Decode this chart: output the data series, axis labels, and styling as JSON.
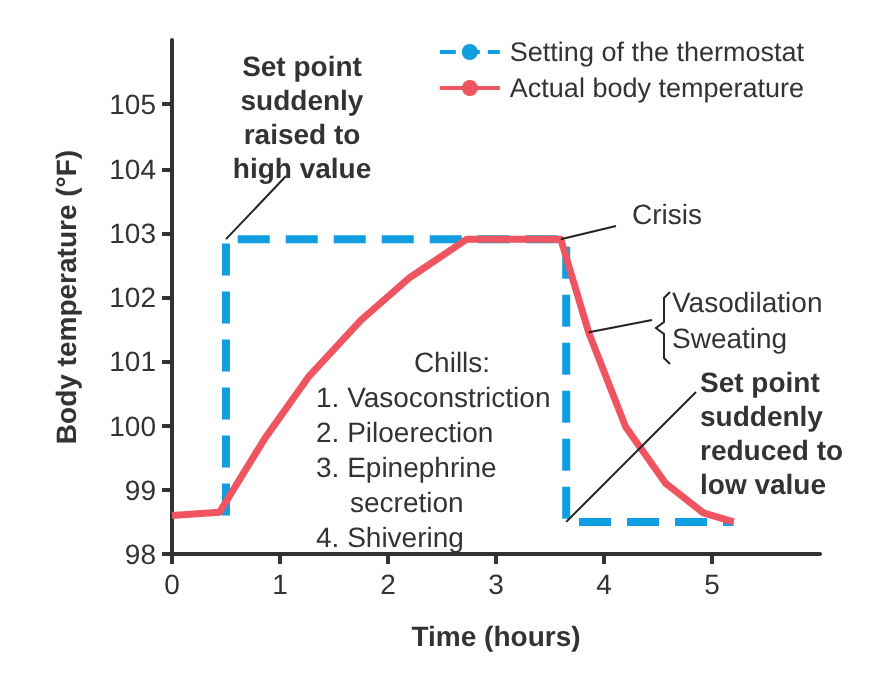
{
  "chart_data": {
    "type": "line",
    "xlabel": "Time (hours)",
    "ylabel": "Body temperature (°F)",
    "xlim": [
      0,
      6
    ],
    "xticks": [
      0,
      1,
      2,
      3,
      4,
      5
    ],
    "ylim": [
      98,
      106
    ],
    "yticks": [
      98,
      99,
      100,
      101,
      102,
      103,
      104,
      105
    ],
    "grid": false,
    "legend": "top right",
    "marker": "none",
    "series": [
      {
        "name": "Setting of the thermostat",
        "color": "#0f9ee0",
        "line_style": "dashed",
        "x": [
          0.5,
          0.5,
          3.65,
          3.65,
          5.2
        ],
        "values": [
          98.6,
          102.9,
          102.9,
          98.5,
          98.5
        ]
      },
      {
        "name": "Actual body temperature",
        "color": "#ee5561",
        "line_style": "solid",
        "x": [
          0,
          0.44,
          0.86,
          1.27,
          1.75,
          2.2,
          2.73,
          3.6,
          3.86,
          4.2,
          4.57,
          4.92,
          5.2
        ],
        "values": [
          98.6,
          98.65,
          99.8,
          100.77,
          101.64,
          102.3,
          102.9,
          102.9,
          101.44,
          99.98,
          99.1,
          98.64,
          98.5
        ]
      }
    ],
    "annotations": [
      {
        "text": "Set point\nsuddenly\nraised to\nhigh value",
        "x": 0.5,
        "y": 102.9
      },
      {
        "text": "Crisis",
        "x": 3.6,
        "y": 102.9
      },
      {
        "text": "Vasodilation\nSweating",
        "x": 3.86,
        "y": 101.45
      },
      "Chills:\n1. Vasoconstriction\n2. Piloerection\n3. Epinephrine\nsecretion\n4. Shivering",
      {
        "text": "Set point\nsuddenly\nreduced to\nlow value",
        "x": 3.65,
        "y": 98.5
      }
    ]
  }
}
